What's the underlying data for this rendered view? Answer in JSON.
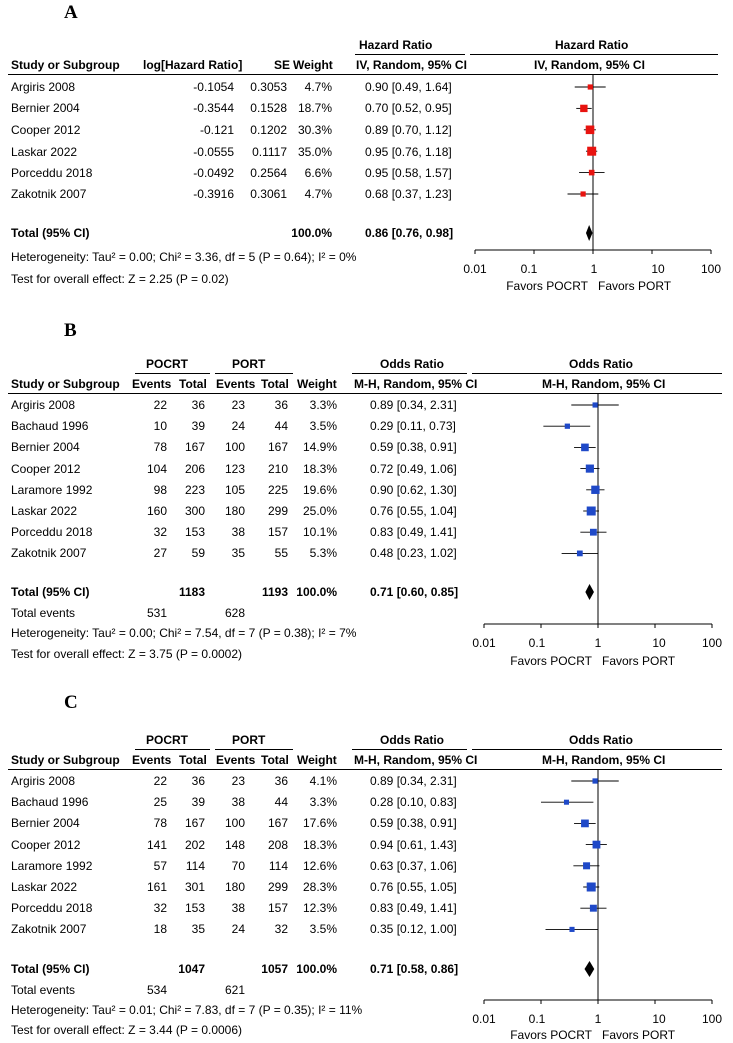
{
  "panels": [
    {
      "id": "A",
      "label": "A",
      "headers": {
        "study": "Study or Subgroup",
        "loghr": "log[Hazard Ratio]",
        "se": "SE",
        "weight": "Weight",
        "effect_top": "Hazard Ratio",
        "effect_sub": "IV, Random, 95% CI",
        "plot_top": "Hazard Ratio",
        "plot_sub": "IV, Random, 95% CI"
      },
      "studies": [
        {
          "name": "Argiris 2008",
          "loghr": "-0.1054",
          "se": "0.3053",
          "weight": "4.7%",
          "ci": "0.90 [0.49, 1.64]"
        },
        {
          "name": "Bernier 2004",
          "loghr": "-0.3544",
          "se": "0.1528",
          "weight": "18.7%",
          "ci": "0.70 [0.52, 0.95]"
        },
        {
          "name": "Cooper 2012",
          "loghr": "-0.121",
          "se": "0.1202",
          "weight": "30.3%",
          "ci": "0.89 [0.70, 1.12]"
        },
        {
          "name": "Laskar 2022",
          "loghr": "-0.0555",
          "se": "0.1117",
          "weight": "35.0%",
          "ci": "0.95 [0.76, 1.18]"
        },
        {
          "name": "Porceddu 2018",
          "loghr": "-0.0492",
          "se": "0.2564",
          "weight": "6.6%",
          "ci": "0.95 [0.58, 1.57]"
        },
        {
          "name": "Zakotnik 2007",
          "loghr": "-0.3916",
          "se": "0.3061",
          "weight": "4.7%",
          "ci": "0.68 [0.37, 1.23]"
        }
      ],
      "total": {
        "label": "Total (95% CI)",
        "weight": "100.0%",
        "ci": "0.86 [0.76, 0.98]"
      },
      "heterogeneity": "Heterogeneity: Tau² = 0.00; Chi² = 3.36, df = 5 (P = 0.64); I² = 0%",
      "overall": "Test for overall effect: Z = 2.25 (P = 0.02)",
      "ticks": [
        "0.01",
        "0.1",
        "1",
        "10",
        "100"
      ],
      "favors_left": "Favors POCRT",
      "favors_right": "Favors PORT"
    },
    {
      "id": "B",
      "label": "B",
      "headers": {
        "group1": "POCRT",
        "group2": "PORT",
        "study": "Study or Subgroup",
        "events": "Events",
        "total": "Total",
        "weight": "Weight",
        "effect_top": "Odds Ratio",
        "effect_sub": "M-H, Random, 95% CI",
        "plot_top": "Odds Ratio",
        "plot_sub": "M-H, Random, 95% CI"
      },
      "studies": [
        {
          "name": "Argiris 2008",
          "e1": "22",
          "t1": "36",
          "e2": "23",
          "t2": "36",
          "weight": "3.3%",
          "ci": "0.89 [0.34, 2.31]"
        },
        {
          "name": "Bachaud 1996",
          "e1": "10",
          "t1": "39",
          "e2": "24",
          "t2": "44",
          "weight": "3.5%",
          "ci": "0.29 [0.11, 0.73]"
        },
        {
          "name": "Bernier 2004",
          "e1": "78",
          "t1": "167",
          "e2": "100",
          "t2": "167",
          "weight": "14.9%",
          "ci": "0.59 [0.38, 0.91]"
        },
        {
          "name": "Cooper 2012",
          "e1": "104",
          "t1": "206",
          "e2": "123",
          "t2": "210",
          "weight": "18.3%",
          "ci": "0.72 [0.49, 1.06]"
        },
        {
          "name": "Laramore 1992",
          "e1": "98",
          "t1": "223",
          "e2": "105",
          "t2": "225",
          "weight": "19.6%",
          "ci": "0.90 [0.62, 1.30]"
        },
        {
          "name": "Laskar 2022",
          "e1": "160",
          "t1": "300",
          "e2": "180",
          "t2": "299",
          "weight": "25.0%",
          "ci": "0.76 [0.55, 1.04]"
        },
        {
          "name": "Porceddu 2018",
          "e1": "32",
          "t1": "153",
          "e2": "38",
          "t2": "157",
          "weight": "10.1%",
          "ci": "0.83 [0.49, 1.41]"
        },
        {
          "name": "Zakotnik 2007",
          "e1": "27",
          "t1": "59",
          "e2": "35",
          "t2": "55",
          "weight": "5.3%",
          "ci": "0.48 [0.23, 1.02]"
        }
      ],
      "total": {
        "label": "Total (95% CI)",
        "t1": "1183",
        "t2": "1193",
        "weight": "100.0%",
        "ci": "0.71 [0.60, 0.85]"
      },
      "total_events": {
        "label": "Total events",
        "e1": "531",
        "e2": "628"
      },
      "heterogeneity": "Heterogeneity: Tau² = 0.00; Chi² = 7.54, df = 7 (P = 0.38); I² = 7%",
      "overall": "Test for overall effect: Z = 3.75 (P = 0.0002)",
      "ticks": [
        "0.01",
        "0.1",
        "1",
        "10",
        "100"
      ],
      "favors_left": "Favors POCRT",
      "favors_right": "Favors PORT"
    },
    {
      "id": "C",
      "label": "C",
      "headers": {
        "group1": "POCRT",
        "group2": "PORT",
        "study": "Study or Subgroup",
        "events": "Events",
        "total": "Total",
        "weight": "Weight",
        "effect_top": "Odds Ratio",
        "effect_sub": "M-H, Random, 95% CI",
        "plot_top": "Odds Ratio",
        "plot_sub": "M-H, Random, 95% CI"
      },
      "studies": [
        {
          "name": "Argiris 2008",
          "e1": "22",
          "t1": "36",
          "e2": "23",
          "t2": "36",
          "weight": "4.1%",
          "ci": "0.89 [0.34, 2.31]"
        },
        {
          "name": "Bachaud 1996",
          "e1": "25",
          "t1": "39",
          "e2": "38",
          "t2": "44",
          "weight": "3.3%",
          "ci": "0.28 [0.10, 0.83]"
        },
        {
          "name": "Bernier 2004",
          "e1": "78",
          "t1": "167",
          "e2": "100",
          "t2": "167",
          "weight": "17.6%",
          "ci": "0.59 [0.38, 0.91]"
        },
        {
          "name": "Cooper 2012",
          "e1": "141",
          "t1": "202",
          "e2": "148",
          "t2": "208",
          "weight": "18.3%",
          "ci": "0.94 [0.61, 1.43]"
        },
        {
          "name": "Laramore 1992",
          "e1": "57",
          "t1": "114",
          "e2": "70",
          "t2": "114",
          "weight": "12.6%",
          "ci": "0.63 [0.37, 1.06]"
        },
        {
          "name": "Laskar 2022",
          "e1": "161",
          "t1": "301",
          "e2": "180",
          "t2": "299",
          "weight": "28.3%",
          "ci": "0.76 [0.55, 1.05]"
        },
        {
          "name": "Porceddu 2018",
          "e1": "32",
          "t1": "153",
          "e2": "38",
          "t2": "157",
          "weight": "12.3%",
          "ci": "0.83 [0.49, 1.41]"
        },
        {
          "name": "Zakotnik 2007",
          "e1": "18",
          "t1": "35",
          "e2": "24",
          "t2": "32",
          "weight": "3.5%",
          "ci": "0.35 [0.12, 1.00]"
        }
      ],
      "total": {
        "label": "Total (95% CI)",
        "t1": "1047",
        "t2": "1057",
        "weight": "100.0%",
        "ci": "0.71 [0.58, 0.86]"
      },
      "total_events": {
        "label": "Total events",
        "e1": "534",
        "e2": "621"
      },
      "heterogeneity": "Heterogeneity: Tau² = 0.01; Chi² = 7.83, df = 7 (P = 0.35); I² = 11%",
      "overall": "Test for overall effect: Z = 3.44 (P = 0.0006)",
      "ticks": [
        "0.01",
        "0.1",
        "1",
        "10",
        "100"
      ],
      "favors_left": "Favors POCRT",
      "favors_right": "Favors PORT"
    }
  ],
  "chart_data": [
    {
      "type": "forest",
      "title": "A",
      "measure": "Hazard Ratio",
      "scale": "log",
      "xlim": [
        0.01,
        100
      ],
      "categories": [
        "Argiris 2008",
        "Bernier 2004",
        "Cooper 2012",
        "Laskar 2022",
        "Porceddu 2018",
        "Zakotnik 2007"
      ],
      "estimates": [
        0.9,
        0.7,
        0.89,
        0.95,
        0.95,
        0.68
      ],
      "lower": [
        0.49,
        0.52,
        0.7,
        0.76,
        0.58,
        0.37
      ],
      "upper": [
        1.64,
        0.95,
        1.12,
        1.18,
        1.57,
        1.23
      ],
      "weights": [
        4.7,
        18.7,
        30.3,
        35.0,
        6.6,
        4.7
      ],
      "pooled": {
        "estimate": 0.86,
        "lower": 0.76,
        "upper": 0.98
      },
      "marker_color": "#e8130f"
    },
    {
      "type": "forest",
      "title": "B",
      "measure": "Odds Ratio",
      "scale": "log",
      "xlim": [
        0.01,
        100
      ],
      "categories": [
        "Argiris 2008",
        "Bachaud 1996",
        "Bernier 2004",
        "Cooper 2012",
        "Laramore 1992",
        "Laskar 2022",
        "Porceddu 2018",
        "Zakotnik 2007"
      ],
      "estimates": [
        0.89,
        0.29,
        0.59,
        0.72,
        0.9,
        0.76,
        0.83,
        0.48
      ],
      "lower": [
        0.34,
        0.11,
        0.38,
        0.49,
        0.62,
        0.55,
        0.49,
        0.23
      ],
      "upper": [
        2.31,
        0.73,
        0.91,
        1.06,
        1.3,
        1.04,
        1.41,
        1.02
      ],
      "weights": [
        3.3,
        3.5,
        14.9,
        18.3,
        19.6,
        25.0,
        10.1,
        5.3
      ],
      "pooled": {
        "estimate": 0.71,
        "lower": 0.6,
        "upper": 0.85
      },
      "marker_color": "#1f49c8"
    },
    {
      "type": "forest",
      "title": "C",
      "measure": "Odds Ratio",
      "scale": "log",
      "xlim": [
        0.01,
        100
      ],
      "categories": [
        "Argiris 2008",
        "Bachaud 1996",
        "Bernier 2004",
        "Cooper 2012",
        "Laramore 1992",
        "Laskar 2022",
        "Porceddu 2018",
        "Zakotnik 2007"
      ],
      "estimates": [
        0.89,
        0.28,
        0.59,
        0.94,
        0.63,
        0.76,
        0.83,
        0.35
      ],
      "lower": [
        0.34,
        0.1,
        0.38,
        0.61,
        0.37,
        0.55,
        0.49,
        0.12
      ],
      "upper": [
        2.31,
        0.83,
        0.91,
        1.43,
        1.06,
        1.05,
        1.41,
        1.0
      ],
      "weights": [
        4.1,
        3.3,
        17.6,
        18.3,
        12.6,
        28.3,
        12.3,
        3.5
      ],
      "pooled": {
        "estimate": 0.71,
        "lower": 0.58,
        "upper": 0.86
      },
      "marker_color": "#1f49c8"
    }
  ]
}
